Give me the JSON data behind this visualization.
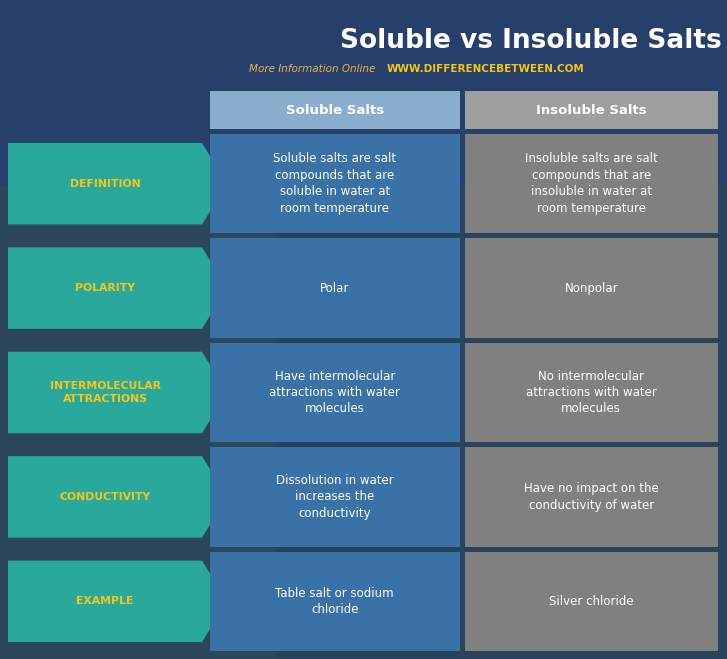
{
  "title": "Soluble vs Insoluble Salts",
  "subtitle_plain": "More Information Online  ",
  "subtitle_url": "WWW.DIFFERENCEBETWEEN.COM",
  "col1_header": "Soluble Salts",
  "col2_header": "Insoluble Salts",
  "rows": [
    {
      "label": "DEFINITION",
      "col1": "Soluble salts are salt\ncompounds that are\nsoluble in water at\nroom temperature",
      "col2": "Insoluble salts are salt\ncompounds that are\ninsoluble in water at\nroom temperature"
    },
    {
      "label": "POLARITY",
      "col1": "Polar",
      "col2": "Nonpolar"
    },
    {
      "label": "INTERMOLECULAR\nATTRACTIONS",
      "col1": "Have intermolecular\nattractions with water\nmolecules",
      "col2": "No intermolecular\nattractions with water\nmolecules"
    },
    {
      "label": "CONDUCTIVITY",
      "col1": "Dissolution in water\nincreases the\nconductivity",
      "col2": "Have no impact on the\nconductivity of water"
    },
    {
      "label": "EXAMPLE",
      "col1": "Table salt or sodium\nchloride",
      "col2": "Silver chloride"
    }
  ],
  "colors": {
    "teal_arrow": "#29A99B",
    "col1_blue": "#3A72A8",
    "col2_gray": "#808080",
    "header_col1": "#8BAECE",
    "header_col2": "#9E9E9E",
    "title_white": "#FFFFFF",
    "subtitle_gold": "#E8B84B",
    "subtitle_url": "#F5C518",
    "label_yellow": "#F5C518",
    "bg_left_green": "#5A7A50",
    "bg_right_blue": "#2B4E7E",
    "overlay_blue": "#1E3D6E"
  },
  "fig_width": 7.27,
  "fig_height": 6.59,
  "dpi": 100
}
